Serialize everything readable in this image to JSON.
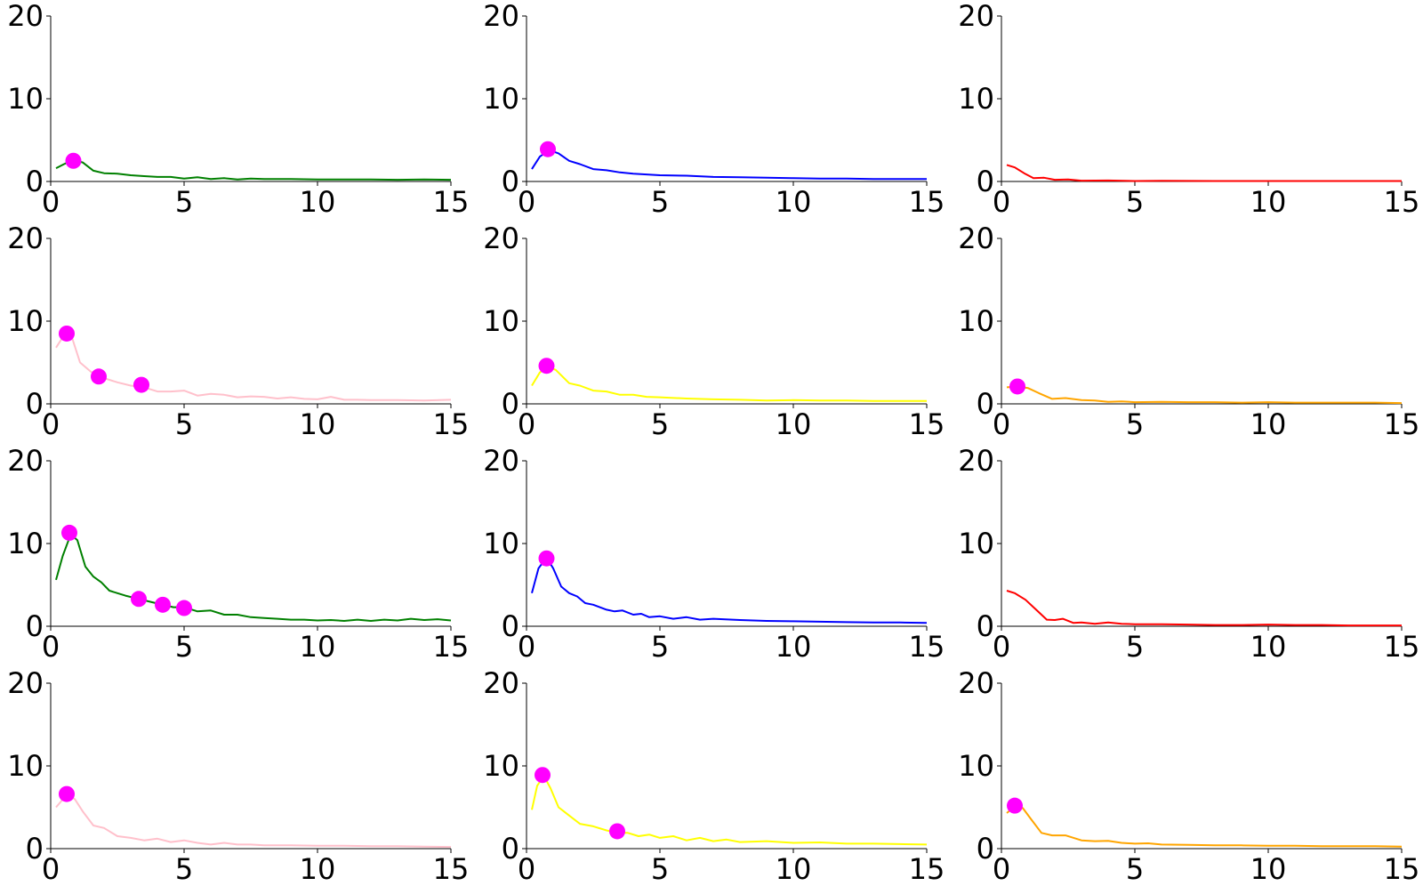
{
  "chart_data": [
    {
      "type": "line",
      "color": "#008000",
      "xlim": [
        0,
        15
      ],
      "ylim": [
        0,
        20
      ],
      "xticks": [
        "0",
        "5",
        "10",
        "15"
      ],
      "yticks": [
        "0",
        "10",
        "20"
      ],
      "x": [
        0.2,
        0.5,
        0.85,
        1.2,
        1.6,
        2.0,
        2.5,
        3.0,
        3.5,
        4.0,
        4.5,
        5.0,
        5.5,
        6.0,
        6.5,
        7.0,
        7.5,
        8.0,
        9.0,
        10.0,
        11.0,
        12.0,
        13.0,
        14.0,
        15.0
      ],
      "y": [
        1.6,
        2.1,
        2.6,
        2.3,
        1.3,
        1.0,
        0.95,
        0.75,
        0.65,
        0.55,
        0.55,
        0.35,
        0.5,
        0.3,
        0.4,
        0.25,
        0.35,
        0.3,
        0.3,
        0.25,
        0.25,
        0.25,
        0.2,
        0.25,
        0.2
      ],
      "markers": [
        {
          "x": 0.85,
          "y": 2.5
        }
      ]
    },
    {
      "type": "line",
      "color": "#0000ff",
      "xlim": [
        0,
        15
      ],
      "ylim": [
        0,
        20
      ],
      "xticks": [
        "0",
        "5",
        "10",
        "15"
      ],
      "yticks": [
        "0",
        "10",
        "20"
      ],
      "x": [
        0.2,
        0.5,
        0.85,
        1.2,
        1.6,
        2.0,
        2.5,
        3.0,
        3.5,
        4.0,
        4.5,
        5.0,
        6.0,
        7.0,
        8.0,
        9.0,
        10.0,
        11.0,
        12.0,
        13.0,
        14.0,
        15.0
      ],
      "y": [
        1.5,
        3.0,
        3.8,
        3.4,
        2.5,
        2.1,
        1.5,
        1.35,
        1.1,
        0.95,
        0.85,
        0.75,
        0.7,
        0.55,
        0.5,
        0.45,
        0.4,
        0.35,
        0.35,
        0.3,
        0.3,
        0.3
      ],
      "markers": [
        {
          "x": 0.8,
          "y": 3.9
        }
      ]
    },
    {
      "type": "line",
      "color": "#ff0000",
      "xlim": [
        0,
        15
      ],
      "ylim": [
        0,
        20
      ],
      "xticks": [
        "0",
        "5",
        "10",
        "15"
      ],
      "yticks": [
        "0",
        "10",
        "20"
      ],
      "x": [
        0.2,
        0.5,
        0.85,
        1.2,
        1.6,
        2.0,
        2.5,
        3.0,
        4.0,
        5.0,
        6.0,
        8.0,
        10.0,
        12.0,
        15.0
      ],
      "y": [
        2.0,
        1.7,
        1.0,
        0.4,
        0.45,
        0.2,
        0.25,
        0.1,
        0.12,
        0.05,
        0.08,
        0.05,
        0.05,
        0.05,
        0.05
      ],
      "markers": []
    },
    {
      "type": "line",
      "color": "#ffc0cb",
      "xlim": [
        0,
        15
      ],
      "ylim": [
        0,
        20
      ],
      "xticks": [
        "0",
        "5",
        "10",
        "15"
      ],
      "yticks": [
        "0",
        "10",
        "20"
      ],
      "x": [
        0.2,
        0.5,
        0.8,
        1.1,
        1.5,
        1.9,
        2.5,
        3.0,
        3.5,
        4.0,
        4.5,
        5.0,
        5.5,
        6.0,
        6.5,
        7.0,
        7.5,
        8.0,
        8.5,
        9.0,
        9.5,
        10.0,
        10.5,
        11.0,
        11.5,
        12.0,
        13.0,
        14.0,
        15.0
      ],
      "y": [
        6.8,
        8.3,
        8.0,
        5.0,
        3.9,
        3.2,
        2.6,
        2.2,
        2.0,
        1.5,
        1.5,
        1.6,
        1.0,
        1.2,
        1.1,
        0.8,
        0.9,
        0.85,
        0.65,
        0.8,
        0.6,
        0.55,
        0.85,
        0.5,
        0.5,
        0.45,
        0.45,
        0.4,
        0.5
      ],
      "markers": [
        {
          "x": 0.6,
          "y": 8.5
        },
        {
          "x": 1.8,
          "y": 3.3
        },
        {
          "x": 3.4,
          "y": 2.3
        }
      ]
    },
    {
      "type": "line",
      "color": "#ffff00",
      "xlim": [
        0,
        15
      ],
      "ylim": [
        0,
        20
      ],
      "xticks": [
        "0",
        "5",
        "10",
        "15"
      ],
      "yticks": [
        "0",
        "10",
        "20"
      ],
      "x": [
        0.2,
        0.5,
        0.8,
        1.1,
        1.6,
        2.0,
        2.5,
        3.0,
        3.5,
        4.0,
        4.5,
        5.0,
        6.0,
        7.0,
        8.0,
        9.0,
        10.0,
        11.0,
        12.0,
        13.0,
        14.0,
        15.0
      ],
      "y": [
        2.2,
        3.8,
        4.5,
        4.1,
        2.5,
        2.2,
        1.6,
        1.5,
        1.1,
        1.1,
        0.85,
        0.8,
        0.65,
        0.55,
        0.5,
        0.4,
        0.45,
        0.4,
        0.4,
        0.35,
        0.35,
        0.35
      ],
      "markers": [
        {
          "x": 0.75,
          "y": 4.6
        }
      ]
    },
    {
      "type": "line",
      "color": "#ffa500",
      "xlim": [
        0,
        15
      ],
      "ylim": [
        0,
        20
      ],
      "xticks": [
        "0",
        "5",
        "10",
        "15"
      ],
      "yticks": [
        "0",
        "10",
        "20"
      ],
      "x": [
        0.2,
        0.6,
        1.0,
        1.4,
        1.9,
        2.4,
        3.0,
        3.5,
        4.0,
        4.5,
        5.0,
        6.0,
        7.0,
        8.0,
        9.0,
        10.0,
        11.0,
        12.0,
        13.0,
        14.0,
        15.0
      ],
      "y": [
        2.0,
        2.1,
        1.9,
        1.3,
        0.6,
        0.7,
        0.45,
        0.4,
        0.25,
        0.3,
        0.2,
        0.25,
        0.2,
        0.2,
        0.15,
        0.2,
        0.15,
        0.15,
        0.15,
        0.15,
        0.1
      ],
      "markers": [
        {
          "x": 0.6,
          "y": 2.1
        }
      ]
    },
    {
      "type": "line",
      "color": "#008000",
      "xlim": [
        0,
        15
      ],
      "ylim": [
        0,
        20
      ],
      "xticks": [
        "0",
        "5",
        "10",
        "15"
      ],
      "yticks": [
        "0",
        "10",
        "20"
      ],
      "x": [
        0.2,
        0.45,
        0.75,
        1.0,
        1.3,
        1.6,
        1.9,
        2.2,
        2.5,
        2.8,
        3.3,
        3.8,
        4.2,
        4.6,
        5.0,
        5.5,
        6.0,
        6.5,
        7.0,
        7.5,
        8.0,
        8.5,
        9.0,
        9.5,
        10.0,
        10.5,
        11.0,
        11.5,
        12.0,
        12.5,
        13.0,
        13.5,
        14.0,
        14.5,
        15.0
      ],
      "y": [
        5.6,
        8.5,
        11.1,
        10.4,
        7.2,
        6.0,
        5.3,
        4.3,
        4.0,
        3.7,
        3.3,
        2.9,
        2.6,
        2.3,
        2.3,
        1.8,
        1.9,
        1.4,
        1.4,
        1.1,
        1.0,
        0.9,
        0.8,
        0.8,
        0.7,
        0.75,
        0.65,
        0.8,
        0.65,
        0.8,
        0.7,
        0.9,
        0.75,
        0.85,
        0.7
      ],
      "markers": [
        {
          "x": 0.7,
          "y": 11.3
        },
        {
          "x": 3.3,
          "y": 3.3
        },
        {
          "x": 4.2,
          "y": 2.6
        },
        {
          "x": 5.0,
          "y": 2.2
        }
      ]
    },
    {
      "type": "line",
      "color": "#0000ff",
      "xlim": [
        0,
        15
      ],
      "ylim": [
        0,
        20
      ],
      "xticks": [
        "0",
        "5",
        "10",
        "15"
      ],
      "yticks": [
        "0",
        "10",
        "20"
      ],
      "x": [
        0.2,
        0.45,
        0.75,
        1.0,
        1.3,
        1.6,
        1.9,
        2.2,
        2.5,
        3.0,
        3.3,
        3.6,
        4.0,
        4.3,
        4.6,
        5.0,
        5.5,
        6.0,
        6.5,
        7.0,
        8.0,
        9.0,
        10.0,
        11.0,
        12.0,
        13.0,
        14.0,
        15.0
      ],
      "y": [
        4.0,
        7.0,
        8.3,
        7.0,
        4.8,
        4.0,
        3.6,
        2.8,
        2.6,
        2.0,
        1.8,
        1.9,
        1.4,
        1.5,
        1.1,
        1.2,
        0.9,
        1.1,
        0.8,
        0.9,
        0.75,
        0.65,
        0.6,
        0.55,
        0.5,
        0.45,
        0.45,
        0.4
      ],
      "markers": [
        {
          "x": 0.75,
          "y": 8.2
        }
      ]
    },
    {
      "type": "line",
      "color": "#ff0000",
      "xlim": [
        0,
        15
      ],
      "ylim": [
        0,
        20
      ],
      "xticks": [
        "0",
        "5",
        "10",
        "15"
      ],
      "yticks": [
        "0",
        "10",
        "20"
      ],
      "x": [
        0.2,
        0.5,
        0.9,
        1.3,
        1.7,
        2.0,
        2.3,
        2.7,
        3.0,
        3.5,
        4.0,
        4.5,
        5.0,
        6.0,
        7.0,
        8.0,
        9.0,
        10.0,
        11.0,
        12.0,
        13.0,
        14.0,
        15.0
      ],
      "y": [
        4.3,
        4.0,
        3.2,
        2.0,
        0.8,
        0.75,
        0.9,
        0.4,
        0.45,
        0.3,
        0.45,
        0.3,
        0.25,
        0.25,
        0.2,
        0.15,
        0.15,
        0.2,
        0.15,
        0.15,
        0.1,
        0.1,
        0.1
      ],
      "markers": []
    },
    {
      "type": "line",
      "color": "#ffc0cb",
      "xlim": [
        0,
        15
      ],
      "ylim": [
        0,
        20
      ],
      "xticks": [
        "0",
        "5",
        "10",
        "15"
      ],
      "yticks": [
        "0",
        "10",
        "20"
      ],
      "x": [
        0.2,
        0.6,
        0.9,
        1.2,
        1.6,
        2.0,
        2.5,
        3.0,
        3.5,
        4.0,
        4.5,
        5.0,
        5.5,
        6.0,
        6.5,
        7.0,
        7.5,
        8.0,
        9.0,
        10.0,
        11.0,
        12.0,
        13.0,
        14.0,
        15.0
      ],
      "y": [
        5.0,
        6.5,
        6.0,
        4.5,
        2.8,
        2.5,
        1.5,
        1.3,
        1.0,
        1.2,
        0.8,
        1.0,
        0.7,
        0.5,
        0.7,
        0.5,
        0.5,
        0.4,
        0.4,
        0.35,
        0.35,
        0.3,
        0.3,
        0.25,
        0.2
      ],
      "markers": [
        {
          "x": 0.6,
          "y": 6.6
        }
      ]
    },
    {
      "type": "line",
      "color": "#ffff00",
      "xlim": [
        0,
        15
      ],
      "ylim": [
        0,
        20
      ],
      "xticks": [
        "0",
        "5",
        "10",
        "15"
      ],
      "yticks": [
        "0",
        "10",
        "20"
      ],
      "x": [
        0.2,
        0.4,
        0.65,
        0.9,
        1.2,
        1.6,
        2.0,
        2.5,
        3.0,
        3.4,
        3.8,
        4.2,
        4.6,
        5.0,
        5.5,
        6.0,
        6.5,
        7.0,
        7.5,
        8.0,
        9.0,
        10.0,
        11.0,
        12.0,
        13.0,
        14.0,
        15.0
      ],
      "y": [
        4.7,
        7.6,
        8.8,
        7.3,
        5.0,
        4.0,
        3.0,
        2.7,
        2.2,
        1.9,
        1.9,
        1.5,
        1.7,
        1.3,
        1.5,
        1.0,
        1.3,
        0.9,
        1.1,
        0.8,
        0.9,
        0.7,
        0.75,
        0.6,
        0.6,
        0.55,
        0.5
      ],
      "markers": [
        {
          "x": 0.6,
          "y": 8.9
        },
        {
          "x": 3.4,
          "y": 2.1
        }
      ]
    },
    {
      "type": "line",
      "color": "#ffa500",
      "xlim": [
        0,
        15
      ],
      "ylim": [
        0,
        20
      ],
      "xticks": [
        "0",
        "5",
        "10",
        "15"
      ],
      "yticks": [
        "0",
        "10",
        "20"
      ],
      "x": [
        0.2,
        0.5,
        0.8,
        1.1,
        1.5,
        1.9,
        2.4,
        3.0,
        3.5,
        4.0,
        4.5,
        5.0,
        5.5,
        6.0,
        7.0,
        8.0,
        9.0,
        10.0,
        11.0,
        12.0,
        13.0,
        14.0,
        15.0
      ],
      "y": [
        4.3,
        5.1,
        4.9,
        3.6,
        1.9,
        1.6,
        1.6,
        1.0,
        0.9,
        0.95,
        0.7,
        0.6,
        0.65,
        0.5,
        0.45,
        0.4,
        0.4,
        0.35,
        0.35,
        0.3,
        0.3,
        0.3,
        0.25
      ],
      "markers": [
        {
          "x": 0.5,
          "y": 5.2
        }
      ]
    }
  ],
  "marker_color": "#ff00ff"
}
